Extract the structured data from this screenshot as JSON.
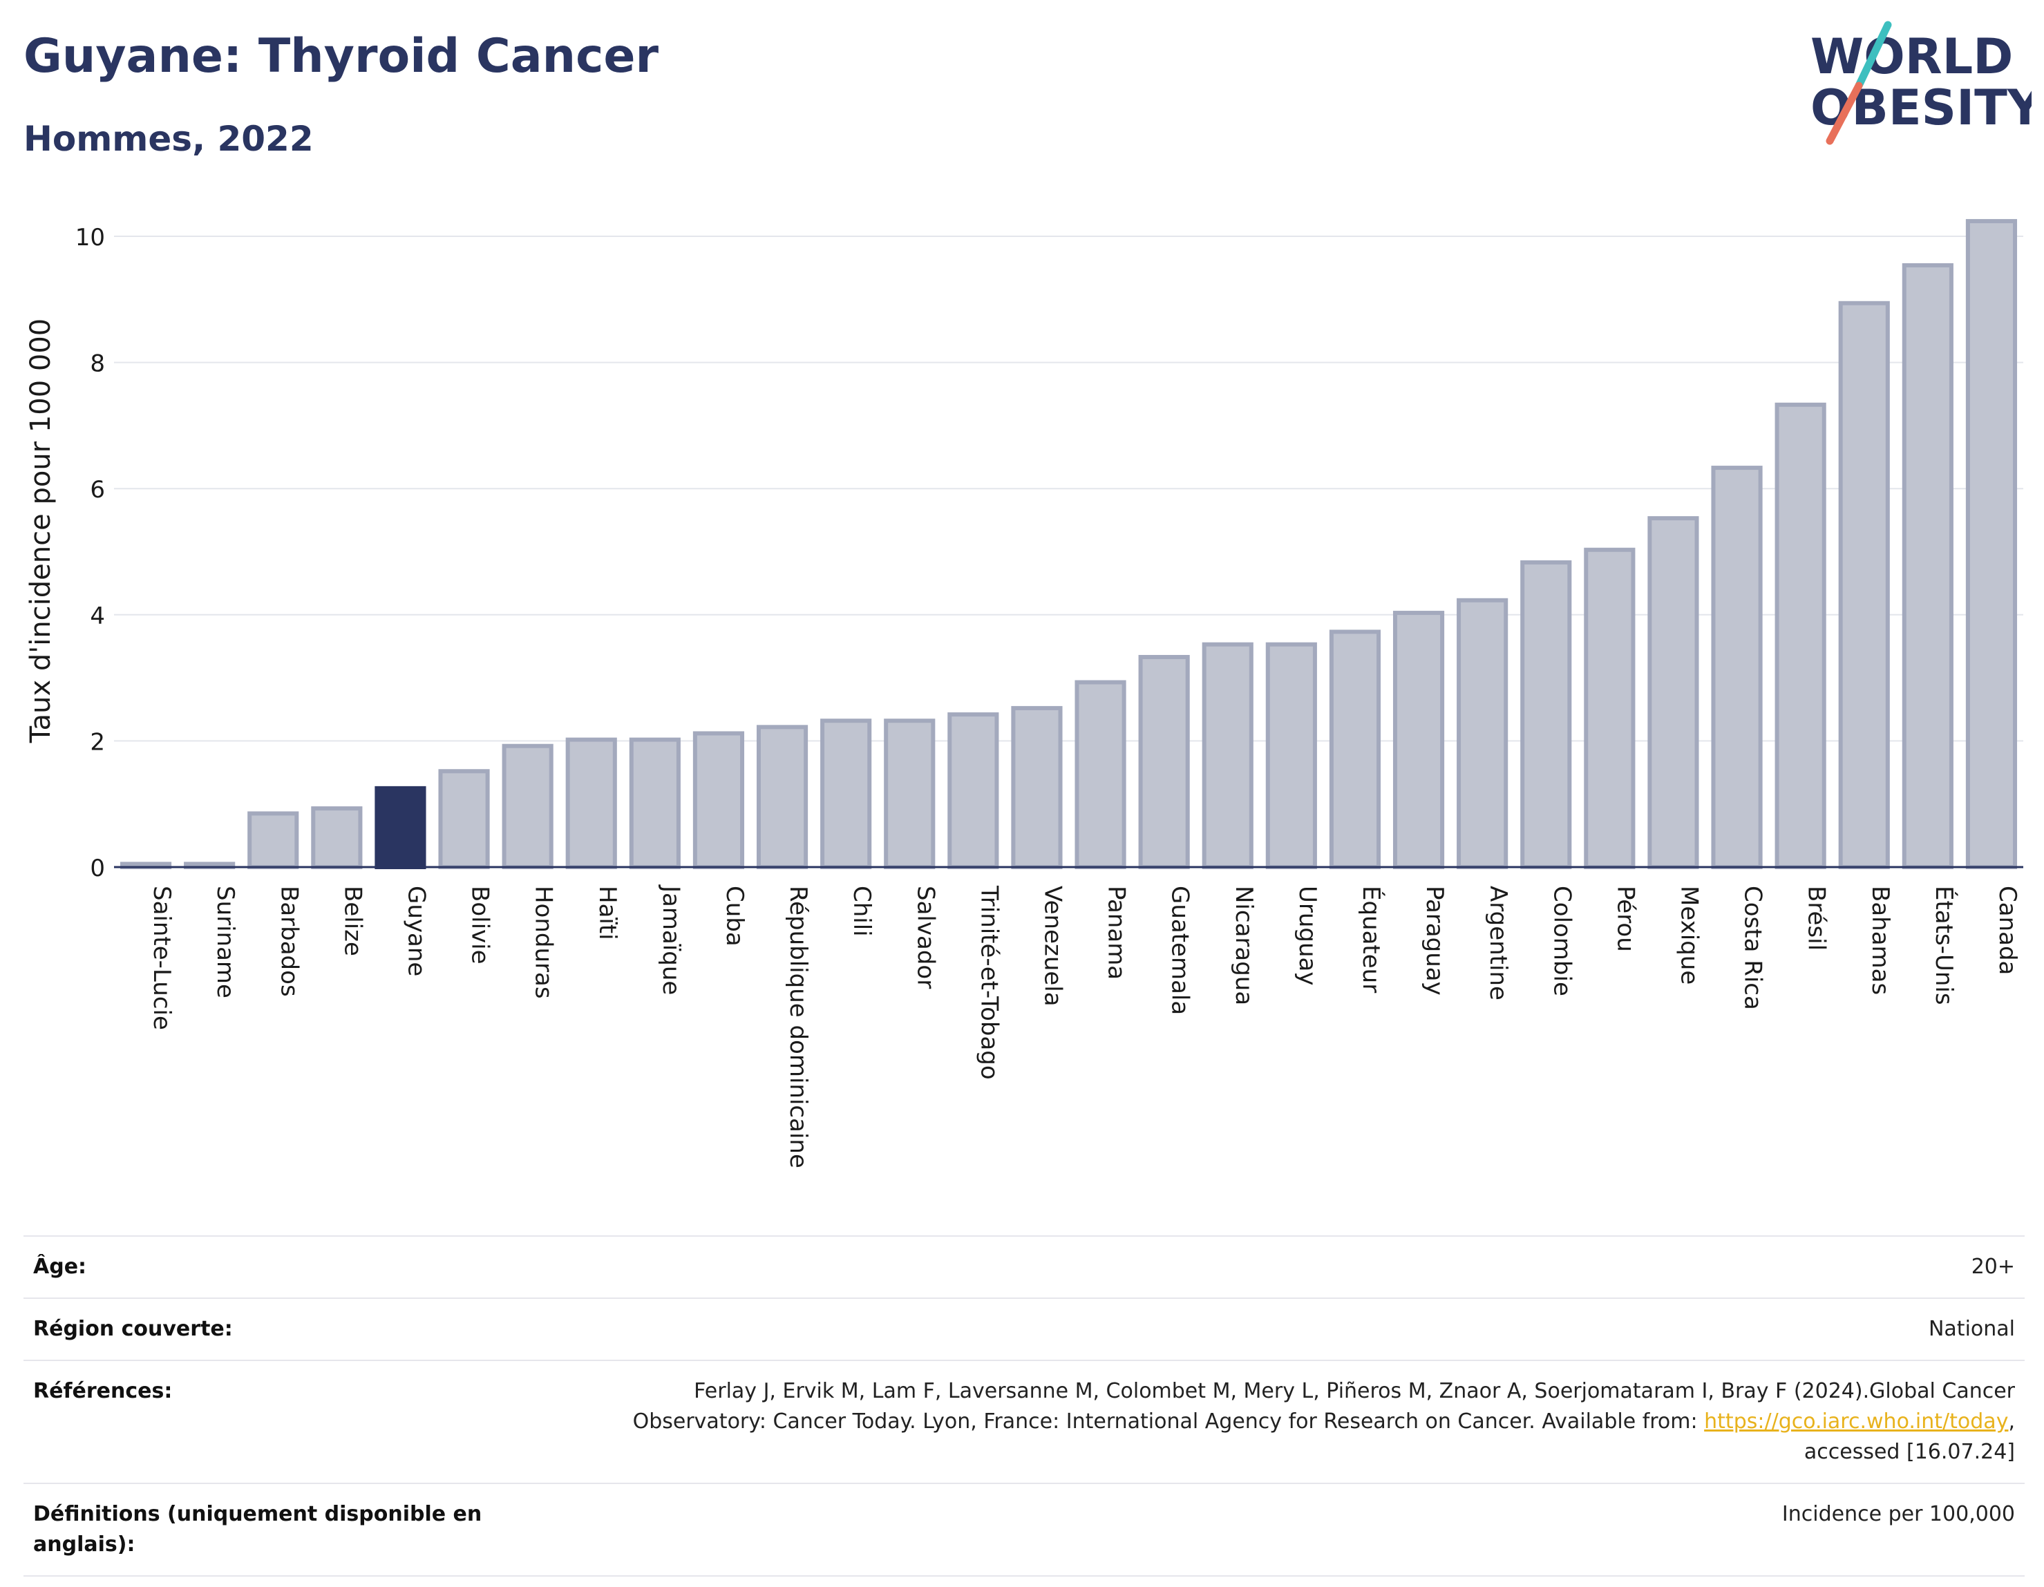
{
  "header": {
    "title": "Guyane: Thyroid Cancer",
    "subtitle": "Hommes, 2022"
  },
  "logo": {
    "line1": "WORLD",
    "line2": "OBESITY",
    "colors": {
      "text": "#2a3561",
      "slash_top": "#3dbfbf",
      "slash_bottom": "#e8705a"
    }
  },
  "colors": {
    "bar_fill": "#c0c4d0",
    "bar_stroke": "#a3a9bd",
    "highlight_fill": "#2a3561",
    "grid": "#e4e6ec",
    "axis": "#2a3561"
  },
  "chart_data": {
    "type": "bar",
    "title": "Guyane: Thyroid Cancer",
    "subtitle": "Hommes, 2022",
    "xlabel": "",
    "ylabel": "Taux d'incidence pour 100 000",
    "ylim": [
      0,
      10.5
    ],
    "yticks": [
      0,
      2,
      4,
      6,
      8,
      10
    ],
    "grid": true,
    "highlight": "Guyane",
    "categories": [
      "Sainte-Lucie",
      "Suriname",
      "Barbados",
      "Belize",
      "Guyane",
      "Bolivie",
      "Honduras",
      "Haïti",
      "Jamaïque",
      "Cuba",
      "République dominicaine",
      "Chili",
      "Salvador",
      "Trinité-et-Tobago",
      "Venezuela",
      "Panama",
      "Guatemala",
      "Nicaragua",
      "Uruguay",
      "Équateur",
      "Paraguay",
      "Argentine",
      "Colombie",
      "Pérou",
      "Mexique",
      "Costa Rica",
      "Brésil",
      "Bahamas",
      "États-Unis",
      "Canada"
    ],
    "values": [
      0.05,
      0.05,
      0.85,
      0.93,
      1.25,
      1.52,
      1.92,
      2.02,
      2.02,
      2.12,
      2.22,
      2.32,
      2.32,
      2.42,
      2.52,
      2.93,
      3.33,
      3.53,
      3.53,
      3.73,
      4.03,
      4.23,
      4.83,
      5.03,
      5.53,
      6.33,
      7.33,
      8.94,
      9.54,
      10.24
    ]
  },
  "info": {
    "age_label": "Âge:",
    "age_value": "20+",
    "region_label": "Région couverte:",
    "region_value": "National",
    "refs_label": "Références:",
    "refs_line1": "Ferlay J, Ervik M, Lam F, Laversanne M, Colombet M, Mery L, Piñeros M, Znaor A, Soerjomataram I, Bray F (2024).Global Cancer",
    "refs_line2_pre": "Observatory: Cancer Today. Lyon, France: International Agency for Research on Cancer. Available from: ",
    "refs_link": "https://gco.iarc.who.int/today",
    "refs_line2_post": ",",
    "refs_line3": "accessed [16.07.24]",
    "defs_label": "Définitions (uniquement disponible en anglais):",
    "defs_value": "Incidence per 100,000"
  }
}
